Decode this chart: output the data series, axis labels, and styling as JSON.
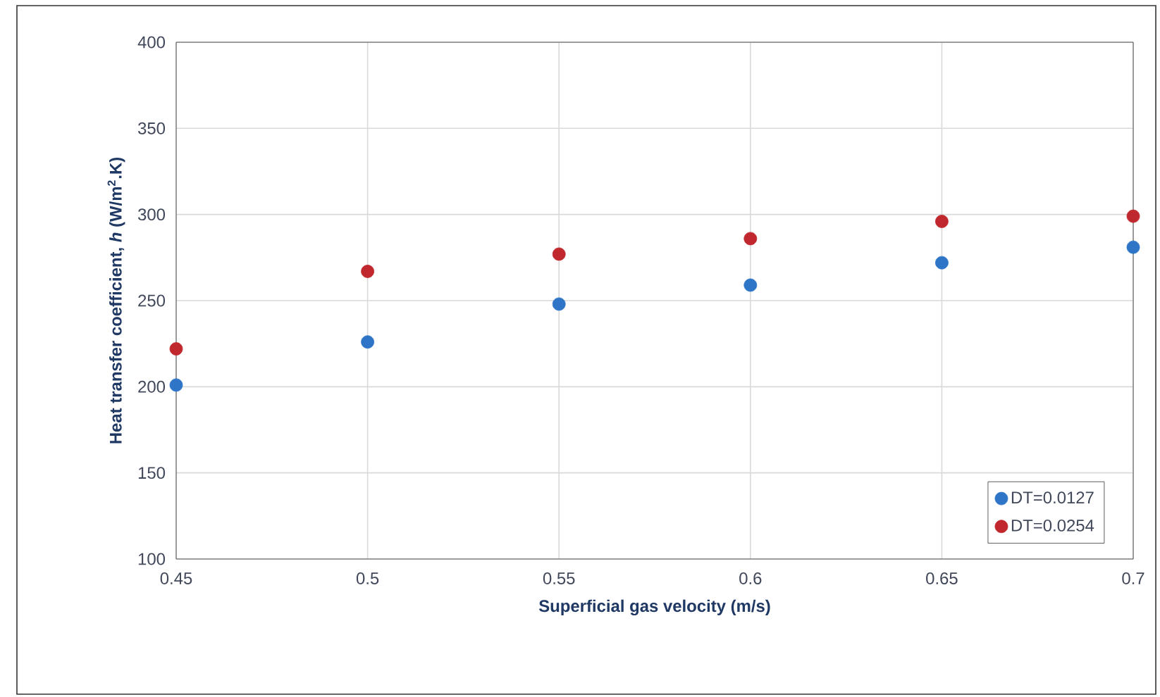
{
  "chart_data": {
    "type": "scatter",
    "xlabel": "Superficial gas velocity (m/s)",
    "ylabel": "Heat transfer coefficient, *h* (W/m$^{2}$.K)",
    "x": [
      0.45,
      0.5,
      0.55,
      0.6,
      0.65,
      0.7
    ],
    "series": [
      {
        "name": "DT=0.0127",
        "color": "#2e75c8",
        "values": [
          201,
          226,
          248,
          259,
          272,
          281
        ]
      },
      {
        "name": "DT=0.0254",
        "color": "#c0282d",
        "values": [
          222,
          267,
          277,
          286,
          296,
          299
        ]
      }
    ],
    "xlim": [
      0.45,
      0.7
    ],
    "ylim": [
      100,
      400
    ],
    "xticks": [
      0.45,
      0.5,
      0.55,
      0.6,
      0.65,
      0.7
    ],
    "yticks": [
      100,
      150,
      200,
      250,
      300,
      350,
      400
    ],
    "grid": true,
    "legend": "bottom right"
  }
}
